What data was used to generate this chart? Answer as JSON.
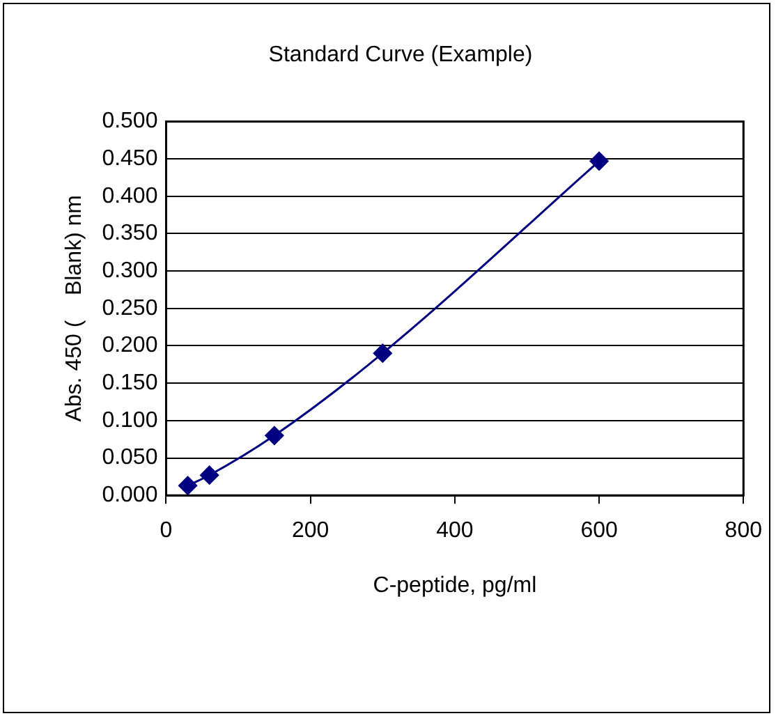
{
  "chart_data": {
    "type": "line",
    "title": "Standard Curve (Example)",
    "xlabel": "C-peptide, pg/ml",
    "ylabel": "Abs. 450 (    Blank) nm",
    "x": [
      30,
      60,
      150,
      300,
      600
    ],
    "series": [
      {
        "color": "#000080",
        "values": [
          0.013,
          0.027,
          0.08,
          0.19,
          0.447
        ]
      }
    ],
    "xlim": [
      0,
      800
    ],
    "xticks": [
      0,
      200,
      400,
      600,
      800
    ],
    "ylim": [
      0,
      0.5
    ],
    "yticks": [
      {
        "value": 0,
        "label": "0.000"
      },
      {
        "value": 0.05,
        "label": "0.050"
      },
      {
        "value": 0.1,
        "label": "0.100"
      },
      {
        "value": 0.15,
        "label": "0.150"
      },
      {
        "value": 0.2,
        "label": "0.200"
      },
      {
        "value": 0.25,
        "label": "0.250"
      },
      {
        "value": 0.3,
        "label": "0.300"
      },
      {
        "value": 0.35,
        "label": "0.350"
      },
      {
        "value": 0.4,
        "label": "0.400"
      },
      {
        "value": 0.45,
        "label": "0.450"
      },
      {
        "value": 0.5,
        "label": "0.500"
      }
    ],
    "grid": "y",
    "marker": "diamond",
    "line_style": "solid",
    "legend": false
  }
}
